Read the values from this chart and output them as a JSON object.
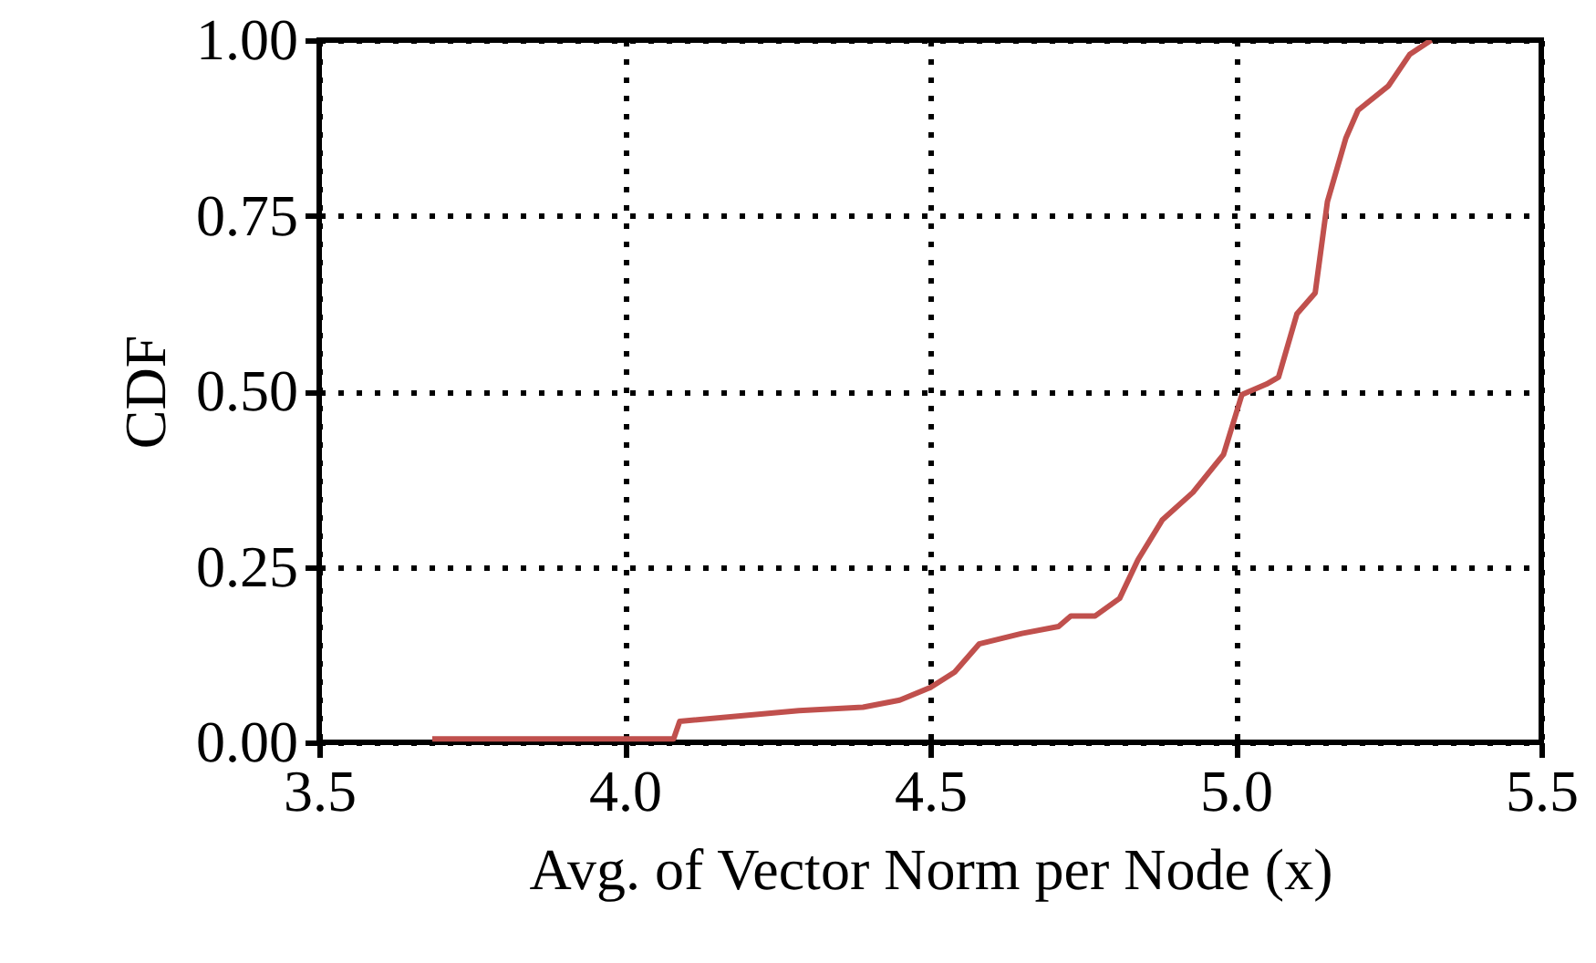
{
  "chart_data": {
    "type": "line",
    "xlabel": "Avg. of Vector Norm per Node (x)",
    "ylabel": "CDF",
    "x": [
      3.685,
      4.08,
      4.09,
      4.285,
      4.39,
      4.45,
      4.5,
      4.54,
      4.58,
      4.65,
      4.71,
      4.73,
      4.77,
      4.81,
      4.84,
      4.88,
      4.93,
      4.98,
      5.01,
      5.05,
      5.07,
      5.1,
      5.13,
      5.15,
      5.18,
      5.2,
      5.25,
      5.285,
      5.32
    ],
    "series": [
      {
        "color": "#c0504d",
        "values": [
          0.005,
          0.005,
          0.03,
          0.045,
          0.05,
          0.06,
          0.078,
          0.1,
          0.14,
          0.155,
          0.165,
          0.18,
          0.18,
          0.205,
          0.26,
          0.317,
          0.356,
          0.41,
          0.495,
          0.51,
          0.52,
          0.61,
          0.64,
          0.77,
          0.86,
          0.9,
          0.935,
          0.98,
          1.0
        ]
      }
    ],
    "xlim": [
      3.5,
      5.5
    ],
    "xticks": [
      {
        "value": 3.5,
        "label": "3.5"
      },
      {
        "value": 4,
        "label": "4.0"
      },
      {
        "value": 4.5,
        "label": "4.5"
      },
      {
        "value": 5,
        "label": "5.0"
      },
      {
        "value": 5.5,
        "label": "5.5"
      }
    ],
    "ylim": [
      0,
      1
    ],
    "yticks": [
      {
        "value": 0,
        "label": "0.00"
      },
      {
        "value": 0.25,
        "label": "0.25"
      },
      {
        "value": 0.5,
        "label": "0.50"
      },
      {
        "value": 0.75,
        "label": "0.75"
      },
      {
        "value": 1,
        "label": "1.00"
      }
    ],
    "grid": true,
    "line_style": "solid"
  }
}
